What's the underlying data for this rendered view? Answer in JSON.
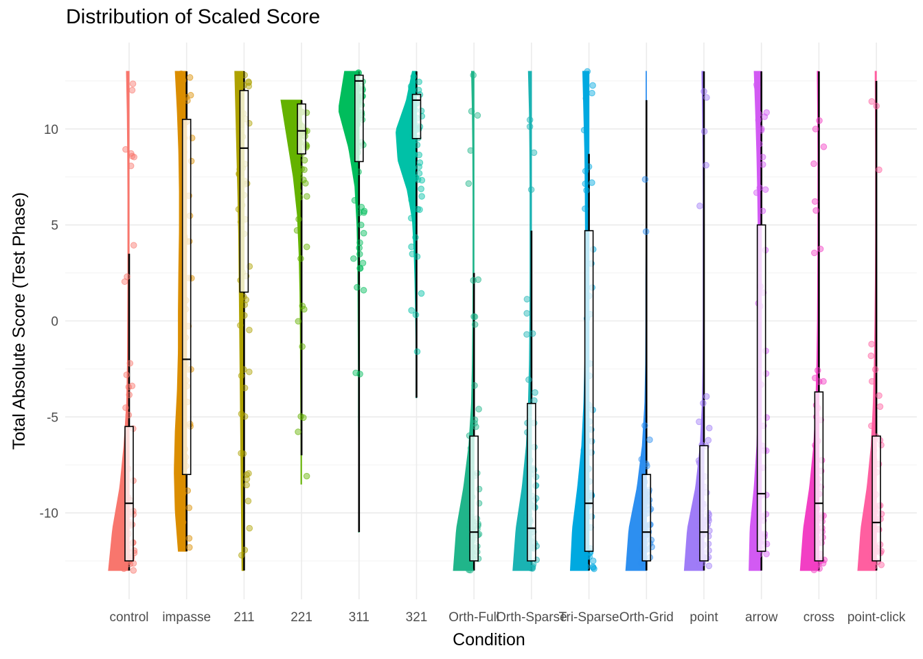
{
  "chart_data": {
    "type": "raincloud",
    "title": "Distribution of Scaled Score",
    "xlabel": "Condition",
    "ylabel": "Total Absolute Score (Test Phase)",
    "ylim": [
      -14.5,
      14.5
    ],
    "yticks": [
      -10,
      -5,
      0,
      5,
      10
    ],
    "yticklabels": [
      "-10",
      "-5",
      "0",
      "5",
      "10"
    ],
    "grid": true,
    "legend": "none",
    "categories": [
      "control",
      "impasse",
      "211",
      "221",
      "311",
      "321",
      "Orth-Full",
      "Orth-Sparse",
      "Tri-Sparse",
      "Orth-Grid",
      "point",
      "arrow",
      "cross",
      "point-click"
    ],
    "series": [
      {
        "category": "control",
        "color": "#F8766D",
        "min": -13,
        "max": 13,
        "q1": -12.5,
        "median": -9.5,
        "q3": -5.5,
        "whisker_low": -13,
        "whisker_high": 3.5,
        "density": [
          1.0,
          0.8,
          0.45,
          0.25,
          0.12,
          0.08,
          0.07,
          0.06,
          0.06,
          0.06,
          0.07,
          0.09,
          0.13
        ]
      },
      {
        "category": "impasse",
        "color": "#DB8E00",
        "min": -12,
        "max": 13,
        "q1": -8.0,
        "median": -2.0,
        "q3": 10.5,
        "whisker_low": -12,
        "whisker_high": 13,
        "density": [
          0.4,
          0.55,
          0.6,
          0.55,
          0.45,
          0.4,
          0.4,
          0.38,
          0.35,
          0.35,
          0.38,
          0.45,
          0.55
        ]
      },
      {
        "category": "211",
        "color": "#AEA200",
        "min": -13,
        "max": 13,
        "q1": 1.5,
        "median": 9.0,
        "q3": 12.0,
        "whisker_low": -13,
        "whisker_high": 13,
        "density": [
          0.1,
          0.12,
          0.14,
          0.16,
          0.18,
          0.2,
          0.22,
          0.24,
          0.26,
          0.3,
          0.35,
          0.4,
          0.45
        ]
      },
      {
        "category": "221",
        "color": "#64B200",
        "min": -8.5,
        "max": 11.5,
        "q1": 8.7,
        "median": 9.9,
        "q3": 11.3,
        "whisker_low": -7.0,
        "whisker_high": 11.5,
        "density": [
          0.03,
          0.03,
          0.04,
          0.05,
          0.06,
          0.08,
          0.12,
          0.2,
          0.4,
          0.7,
          1.0
        ]
      },
      {
        "category": "311",
        "color": "#00BD5C",
        "min": -11,
        "max": 13,
        "q1": 8.3,
        "median": 12.5,
        "q3": 12.8,
        "whisker_low": -11,
        "whisker_high": 13,
        "density": [
          0.02,
          0.02,
          0.02,
          0.03,
          0.03,
          0.04,
          0.05,
          0.06,
          0.1,
          0.2,
          0.5,
          1.0,
          0.7
        ]
      },
      {
        "category": "321",
        "color": "#00C1A7",
        "min": -4,
        "max": 13,
        "q1": 9.5,
        "median": 11.5,
        "q3": 11.8,
        "whisker_low": -4,
        "whisker_high": 13,
        "density": [
          0.02,
          0.02,
          0.03,
          0.05,
          0.08,
          0.12,
          0.2,
          0.45,
          0.9,
          1.0,
          0.5,
          0.2
        ]
      },
      {
        "category": "Orth-Full",
        "color": "#20B58A",
        "min": -13,
        "max": 13,
        "q1": -12.5,
        "median": -11.0,
        "q3": -6.0,
        "whisker_low": -13,
        "whisker_high": 2.5,
        "density": [
          1.0,
          0.85,
          0.5,
          0.25,
          0.12,
          0.08,
          0.06,
          0.05,
          0.05,
          0.05,
          0.06,
          0.08,
          0.12
        ]
      },
      {
        "category": "Orth-Sparse",
        "color": "#1AB3B3",
        "min": -13,
        "max": 13,
        "q1": -12.5,
        "median": -10.8,
        "q3": -4.3,
        "whisker_low": -13,
        "whisker_high": 4.7,
        "density": [
          0.9,
          0.75,
          0.45,
          0.25,
          0.15,
          0.1,
          0.08,
          0.07,
          0.07,
          0.07,
          0.08,
          0.1,
          0.15
        ]
      },
      {
        "category": "Tri-Sparse",
        "color": "#00A9E0",
        "min": -13,
        "max": 13,
        "q1": -12.0,
        "median": -9.5,
        "q3": 4.7,
        "whisker_low": -13,
        "whisker_high": 8.7,
        "density": [
          0.9,
          0.8,
          0.55,
          0.35,
          0.25,
          0.2,
          0.18,
          0.17,
          0.17,
          0.18,
          0.2,
          0.25,
          0.3
        ]
      },
      {
        "category": "Orth-Grid",
        "color": "#2D8FF0",
        "min": -13,
        "max": 13,
        "q1": -12.5,
        "median": -11.0,
        "q3": -8.0,
        "whisker_low": -13,
        "whisker_high": 11.5,
        "density": [
          1.0,
          0.85,
          0.45,
          0.2,
          0.08,
          0.04,
          0.03,
          0.03,
          0.02,
          0.02,
          0.02,
          0.02,
          0.02
        ]
      },
      {
        "category": "point",
        "color": "#9F7CF7",
        "min": -13,
        "max": 13,
        "q1": -12.5,
        "median": -11.0,
        "q3": -6.5,
        "whisker_low": -13,
        "whisker_high": 13,
        "density": [
          0.95,
          0.8,
          0.4,
          0.18,
          0.08,
          0.05,
          0.04,
          0.04,
          0.04,
          0.04,
          0.05,
          0.07,
          0.1
        ]
      },
      {
        "category": "arrow",
        "color": "#D25AF3",
        "min": -13,
        "max": 13,
        "q1": -12.0,
        "median": -9.0,
        "q3": 5.0,
        "whisker_low": -13,
        "whisker_high": 13,
        "density": [
          0.6,
          0.55,
          0.35,
          0.22,
          0.16,
          0.14,
          0.14,
          0.14,
          0.15,
          0.18,
          0.22,
          0.28,
          0.35
        ]
      },
      {
        "category": "cross",
        "color": "#F23FC4",
        "min": -13,
        "max": 13,
        "q1": -12.5,
        "median": -9.5,
        "q3": -3.7,
        "whisker_low": -13,
        "whisker_high": 13,
        "density": [
          0.9,
          0.75,
          0.45,
          0.25,
          0.15,
          0.1,
          0.07,
          0.06,
          0.05,
          0.05,
          0.05,
          0.06,
          0.08
        ]
      },
      {
        "category": "point-click",
        "color": "#FF5FA0",
        "min": -13,
        "max": 13,
        "q1": -12.5,
        "median": -10.5,
        "q3": -6.0,
        "whisker_low": -13,
        "whisker_high": 12.5,
        "density": [
          0.9,
          0.75,
          0.45,
          0.25,
          0.15,
          0.1,
          0.07,
          0.05,
          0.04,
          0.04,
          0.04,
          0.05,
          0.06
        ]
      }
    ]
  }
}
